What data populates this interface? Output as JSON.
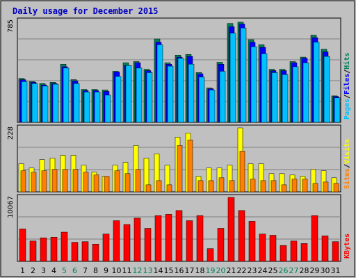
{
  "title": "Daily usage for December 2015",
  "colors": {
    "hits": "#00805c",
    "files": "#0000ff",
    "pages": "#00c0ff",
    "visits": "#ffff00",
    "sites": "#ff8000",
    "kbytes": "#ff0000",
    "weekday_label": "#000000",
    "weekend_label": "#00805c",
    "panel_bg": "#c0c0c0",
    "grid": "#000000"
  },
  "chart_data": [
    {
      "type": "bar",
      "name": "hits-files-pages",
      "categories": [
        "1",
        "2",
        "3",
        "4",
        "5",
        "6",
        "7",
        "8",
        "9",
        "10",
        "11",
        "12",
        "13",
        "14",
        "15",
        "16",
        "17",
        "18",
        "19",
        "20",
        "21",
        "22",
        "23",
        "24",
        "25",
        "26",
        "27",
        "28",
        "29",
        "30",
        "31"
      ],
      "weekend": [
        "5",
        "6",
        "12",
        "13",
        "19",
        "20",
        "26",
        "27"
      ],
      "ymax_label": "785",
      "ylim": [
        0,
        785
      ],
      "ylabel_parts": [
        "Pages",
        "/",
        "Files",
        "/",
        "Hits"
      ],
      "series": [
        {
          "name": "Hits",
          "values": [
            340,
            315,
            300,
            310,
            450,
            330,
            255,
            255,
            250,
            395,
            460,
            470,
            410,
            645,
            460,
            520,
            525,
            385,
            265,
            465,
            765,
            775,
            640,
            600,
            410,
            410,
            470,
            505,
            675,
            565,
            205
          ]
        },
        {
          "name": "Files",
          "values": [
            330,
            310,
            290,
            300,
            430,
            320,
            245,
            245,
            240,
            390,
            440,
            460,
            400,
            620,
            450,
            505,
            510,
            375,
            260,
            450,
            740,
            760,
            620,
            580,
            400,
            400,
            460,
            495,
            655,
            545,
            200
          ]
        },
        {
          "name": "Pages",
          "values": [
            315,
            300,
            280,
            295,
            420,
            300,
            235,
            235,
            210,
            355,
            440,
            420,
            385,
            600,
            435,
            495,
            450,
            350,
            250,
            395,
            690,
            730,
            585,
            530,
            385,
            370,
            430,
            460,
            620,
            510,
            190
          ]
        }
      ]
    },
    {
      "type": "bar",
      "name": "visits-sites",
      "categories": [
        "1",
        "2",
        "3",
        "4",
        "5",
        "6",
        "7",
        "8",
        "9",
        "10",
        "11",
        "12",
        "13",
        "14",
        "15",
        "16",
        "17",
        "18",
        "19",
        "20",
        "21",
        "22",
        "23",
        "24",
        "25",
        "26",
        "27",
        "28",
        "29",
        "30",
        "31"
      ],
      "ymax_label": "228",
      "ylim": [
        0,
        228
      ],
      "ylabel_parts": [
        "Sites",
        "/",
        "Visits"
      ],
      "series": [
        {
          "name": "Visits",
          "values": [
            100,
            85,
            115,
            120,
            130,
            130,
            95,
            70,
            55,
            95,
            105,
            165,
            120,
            135,
            95,
            195,
            210,
            55,
            85,
            85,
            95,
            228,
            100,
            100,
            65,
            65,
            60,
            55,
            80,
            75,
            50
          ]
        },
        {
          "name": "Sites",
          "values": [
            75,
            70,
            75,
            80,
            80,
            80,
            70,
            60,
            55,
            75,
            65,
            80,
            25,
            40,
            25,
            165,
            185,
            40,
            40,
            50,
            40,
            145,
            45,
            40,
            40,
            25,
            45,
            45,
            30,
            35,
            30
          ]
        }
      ]
    },
    {
      "type": "bar",
      "name": "kbytes",
      "categories": [
        "1",
        "2",
        "3",
        "4",
        "5",
        "6",
        "7",
        "8",
        "9",
        "10",
        "11",
        "12",
        "13",
        "14",
        "15",
        "16",
        "17",
        "18",
        "19",
        "20",
        "21",
        "22",
        "23",
        "24",
        "25",
        "26",
        "27",
        "28",
        "29",
        "30",
        "31"
      ],
      "ymax_label": "10067",
      "ylim": [
        0,
        10067
      ],
      "ylabel_parts": [
        "KBytes"
      ],
      "series": [
        {
          "name": "KBytes",
          "values": [
            5100,
            3200,
            3700,
            3800,
            4600,
            3000,
            3100,
            2700,
            4300,
            6400,
            5800,
            6800,
            5200,
            7200,
            7400,
            8000,
            6400,
            7200,
            2000,
            5200,
            10067,
            8000,
            6300,
            4300,
            4100,
            2500,
            3200,
            2800,
            7200,
            4000,
            3100
          ]
        }
      ]
    }
  ]
}
